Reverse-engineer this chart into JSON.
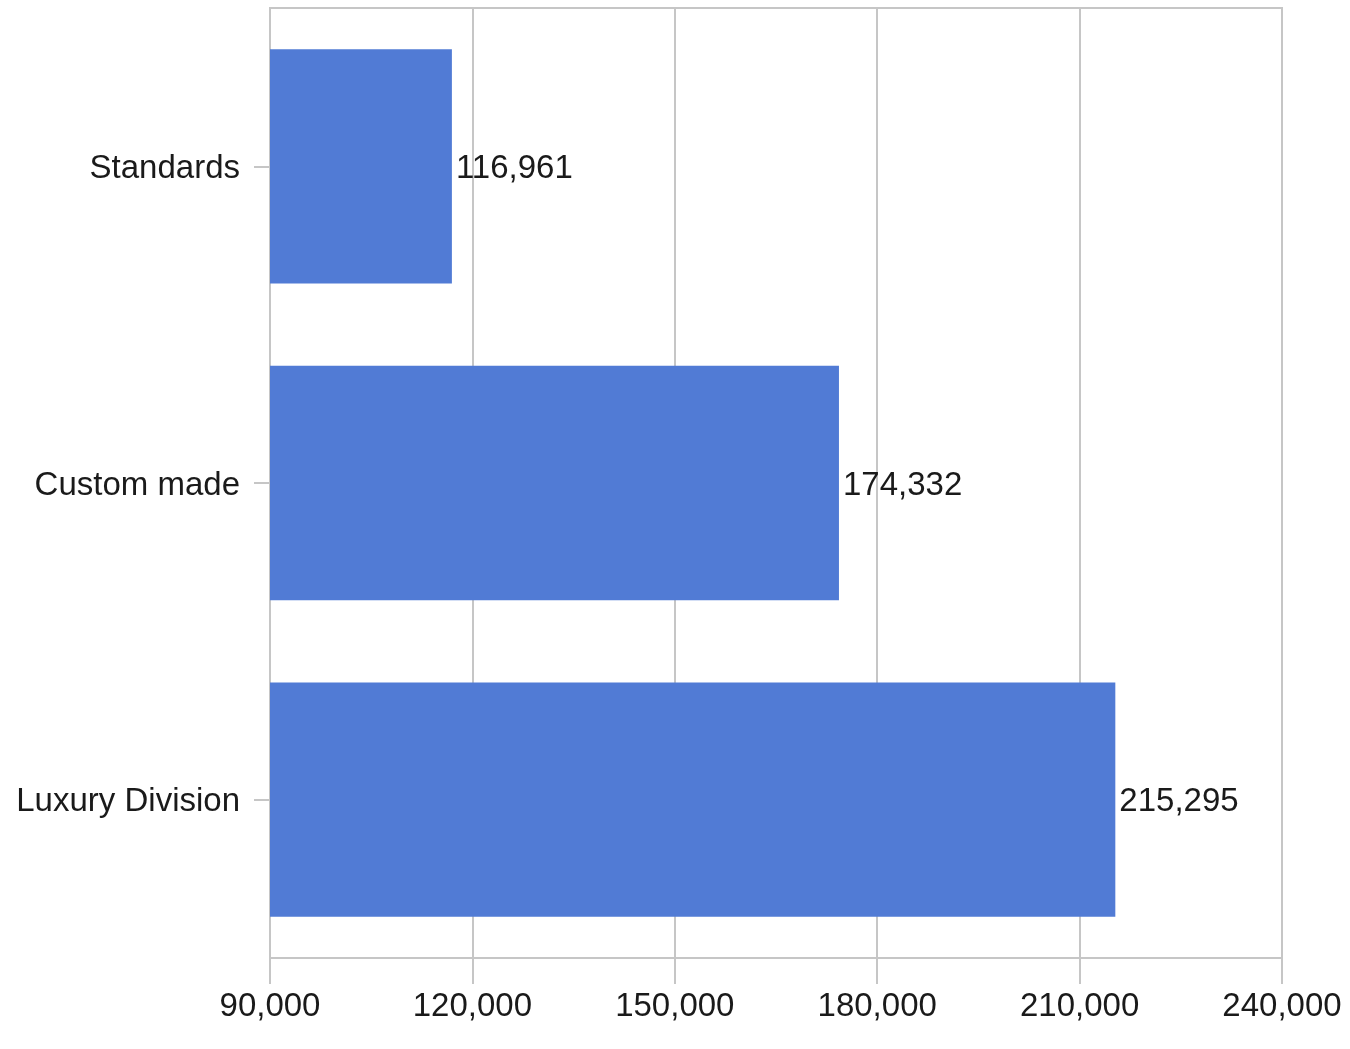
{
  "chart_data": {
    "type": "bar",
    "orientation": "horizontal",
    "categories": [
      "Standards",
      "Custom made",
      "Luxury Division"
    ],
    "values": [
      116961,
      174332,
      215295
    ],
    "color": "#517bd5",
    "value_labels": [
      "116,961",
      "174,332",
      "215,295"
    ],
    "xlim": [
      90000,
      240000
    ],
    "xticks": [
      {
        "value": 90000,
        "label": "90,000"
      },
      {
        "value": 120000,
        "label": "120,000"
      },
      {
        "value": 150000,
        "label": "150,000"
      },
      {
        "value": 180000,
        "label": "180,000"
      },
      {
        "value": 210000,
        "label": "210,000"
      },
      {
        "value": 240000,
        "label": "240,000"
      }
    ],
    "grid": "x"
  }
}
